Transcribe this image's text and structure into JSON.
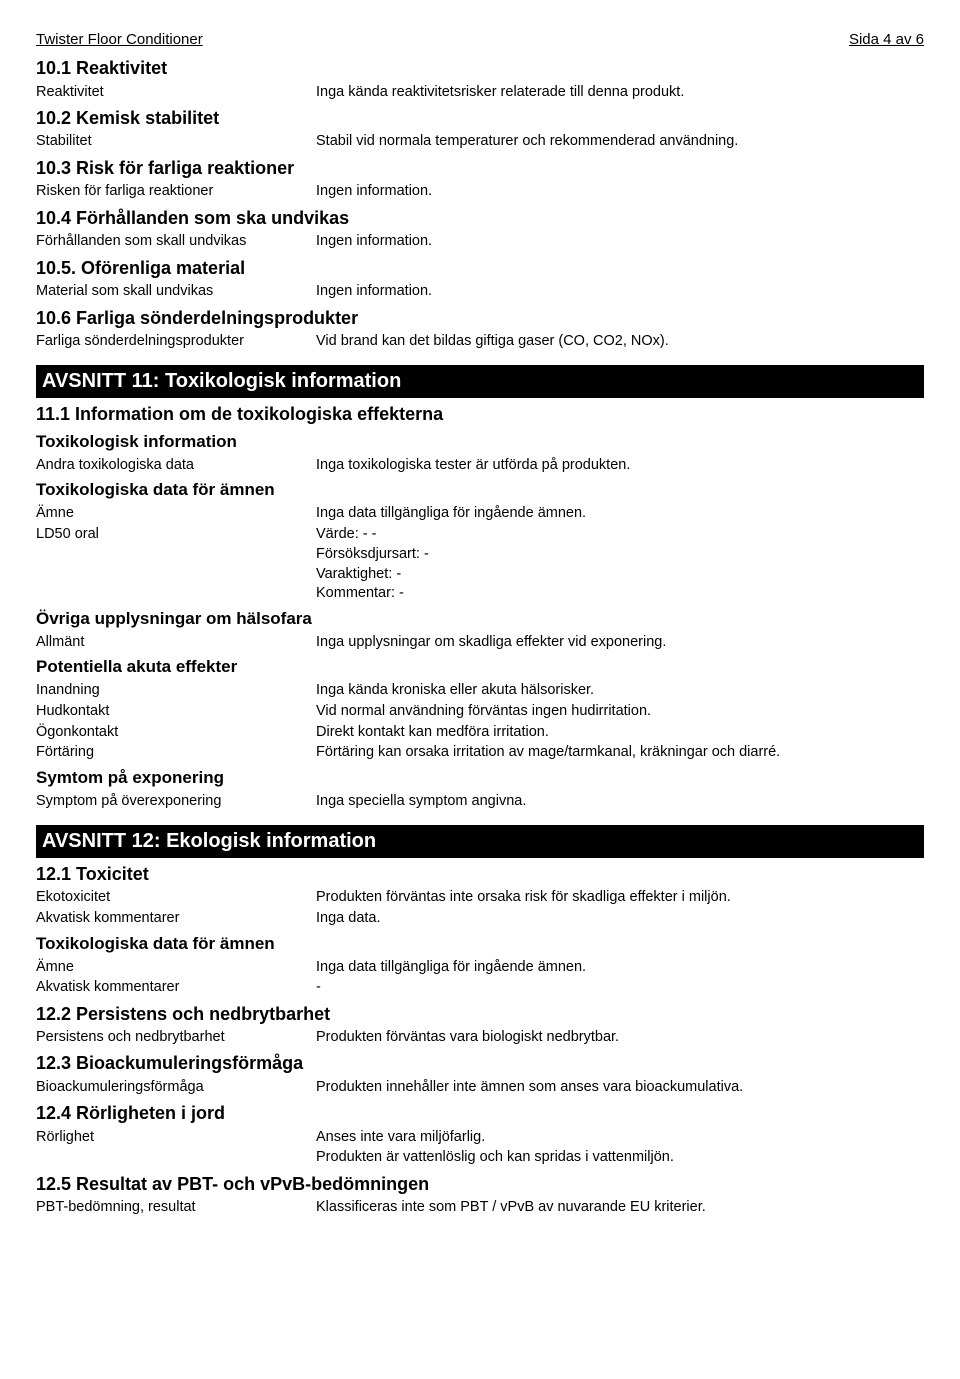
{
  "header": {
    "product": "Twister Floor Conditioner",
    "page": "Sida 4 av 6"
  },
  "s10": {
    "t1": "10.1 Reaktivitet",
    "r1_l": "Reaktivitet",
    "r1_v": "Inga kända reaktivitetsrisker relaterade till denna produkt.",
    "t2": "10.2 Kemisk stabilitet",
    "r2_l": "Stabilitet",
    "r2_v": "Stabil vid normala temperaturer och rekommenderad användning.",
    "t3": "10.3 Risk för farliga reaktioner",
    "r3_l": "Risken för farliga reaktioner",
    "r3_v": "Ingen information.",
    "t4": "10.4 Förhållanden som ska undvikas",
    "r4_l": "Förhållanden som skall undvikas",
    "r4_v": "Ingen information.",
    "t5": "10.5. Oförenliga material",
    "r5_l": "Material som skall undvikas",
    "r5_v": "Ingen information.",
    "t6": "10.6 Farliga sönderdelningsprodukter",
    "r6_l": "Farliga sönderdelningsprodukter",
    "r6_v": "Vid brand kan det bildas giftiga gaser (CO, CO2, NOx)."
  },
  "s11": {
    "banner": "AVSNITT 11: Toxikologisk information",
    "t1": "11.1 Information om de toxikologiska effekterna",
    "sub1": "Toxikologisk information",
    "r1_l": "Andra toxikologiska data",
    "r1_v": "Inga toxikologiska tester är utförda på produkten.",
    "sub2": "Toxikologiska data för ämnen",
    "r2_l": "Ämne",
    "r2_v": "Inga data tillgängliga för ingående ämnen.",
    "r3_l": "LD50 oral",
    "r3_v": "Värde: - -",
    "r3_v2": "Försöksdjursart: -",
    "r3_v3": "Varaktighet: -",
    "r3_v4": "Kommentar: -",
    "sub3": "Övriga upplysningar om hälsofara",
    "r4_l": "Allmänt",
    "r4_v": "Inga upplysningar om skadliga effekter vid exponering.",
    "sub4": "Potentiella akuta effekter",
    "r5_l": "Inandning",
    "r5_v": "Inga kända kroniska eller akuta hälsorisker.",
    "r6_l": "Hudkontakt",
    "r6_v": "Vid normal användning förväntas ingen hudirritation.",
    "r7_l": "Ögonkontakt",
    "r7_v": "Direkt kontakt kan medföra irritation.",
    "r8_l": "Förtäring",
    "r8_v": "Förtäring kan orsaka irritation av mage/tarmkanal, kräkningar och diarré.",
    "sub5": "Symtom på exponering",
    "r9_l": "Symptom på överexponering",
    "r9_v": "Inga speciella symptom angivna."
  },
  "s12": {
    "banner": "AVSNITT 12: Ekologisk information",
    "t1": "12.1 Toxicitet",
    "r1_l": "Ekotoxicitet",
    "r1_v": "Produkten förväntas inte orsaka risk för skadliga effekter i miljön.",
    "r2_l": "Akvatisk kommentarer",
    "r2_v": "Inga data.",
    "sub1": "Toxikologiska data för ämnen",
    "r3_l": "Ämne",
    "r3_v": "Inga data tillgängliga för ingående ämnen.",
    "r4_l": "Akvatisk kommentarer",
    "r4_v": "-",
    "t2": "12.2 Persistens och nedbrytbarhet",
    "r5_l": "Persistens och nedbrytbarhet",
    "r5_v": "Produkten förväntas vara biologiskt nedbrytbar.",
    "t3": "12.3 Bioackumuleringsförmåga",
    "r6_l": "Bioackumuleringsförmåga",
    "r6_v": "Produkten innehåller inte ämnen som anses vara bioackumulativa.",
    "t4": "12.4 Rörligheten i jord",
    "r7_l": "Rörlighet",
    "r7_v": "Anses inte vara miljöfarlig.",
    "r7_v2": "Produkten är vattenlöslig och kan spridas i vattenmiljön.",
    "t5": "12.5 Resultat av PBT- och vPvB-bedömningen",
    "r8_l": "PBT-bedömning, resultat",
    "r8_v": "Klassificeras inte som PBT / vPvB av nuvarande EU kriterier."
  }
}
